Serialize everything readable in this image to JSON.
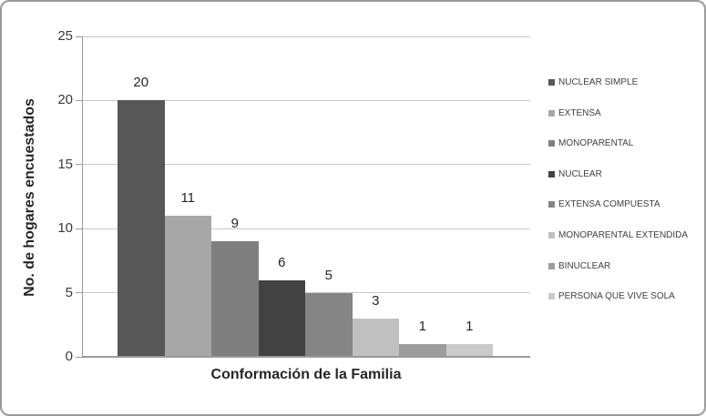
{
  "chart_data": {
    "type": "bar",
    "title": "",
    "xlabel": "Conformación de la Familia",
    "ylabel": "No. de hogares encuestados",
    "categories": [
      "NUCLEAR SIMPLE",
      "EXTENSA",
      "MONOPARENTAL",
      "NUCLEAR",
      "EXTENSA COMPUESTA",
      "MONOPARENTAL EXTENDIDA",
      "BINUCLEAR",
      "PERSONA QUE VIVE SOLA"
    ],
    "values": [
      20,
      11,
      9,
      6,
      5,
      3,
      1,
      1
    ],
    "data_labels": [
      "20",
      "11",
      "9",
      "6",
      "5",
      "3",
      "1",
      "1"
    ],
    "bar_colors": [
      "#575757",
      "#a7a7a7",
      "#7f7f7f",
      "#424242",
      "#858585",
      "#c0c0c0",
      "#9c9c9c",
      "#cacaca"
    ],
    "ylim": [
      0,
      25
    ],
    "yticks": [
      "0",
      "5",
      "10",
      "15",
      "20",
      "25"
    ],
    "ytick_values": [
      0,
      5,
      10,
      15,
      20,
      25
    ],
    "grid": true,
    "legend_position": "right",
    "legend_entries": [
      "NUCLEAR SIMPLE",
      "EXTENSA",
      "MONOPARENTAL",
      "NUCLEAR",
      "EXTENSA COMPUESTA",
      "MONOPARENTAL EXTENDIDA",
      "BINUCLEAR",
      "PERSONA QUE VIVE SOLA"
    ]
  },
  "colors": {
    "axis": "#9a9a9a",
    "gridline": "#c9c9c9",
    "frame_border": "#9a9a9a",
    "text": "#262626",
    "legend_text": "#3f3f3f"
  }
}
